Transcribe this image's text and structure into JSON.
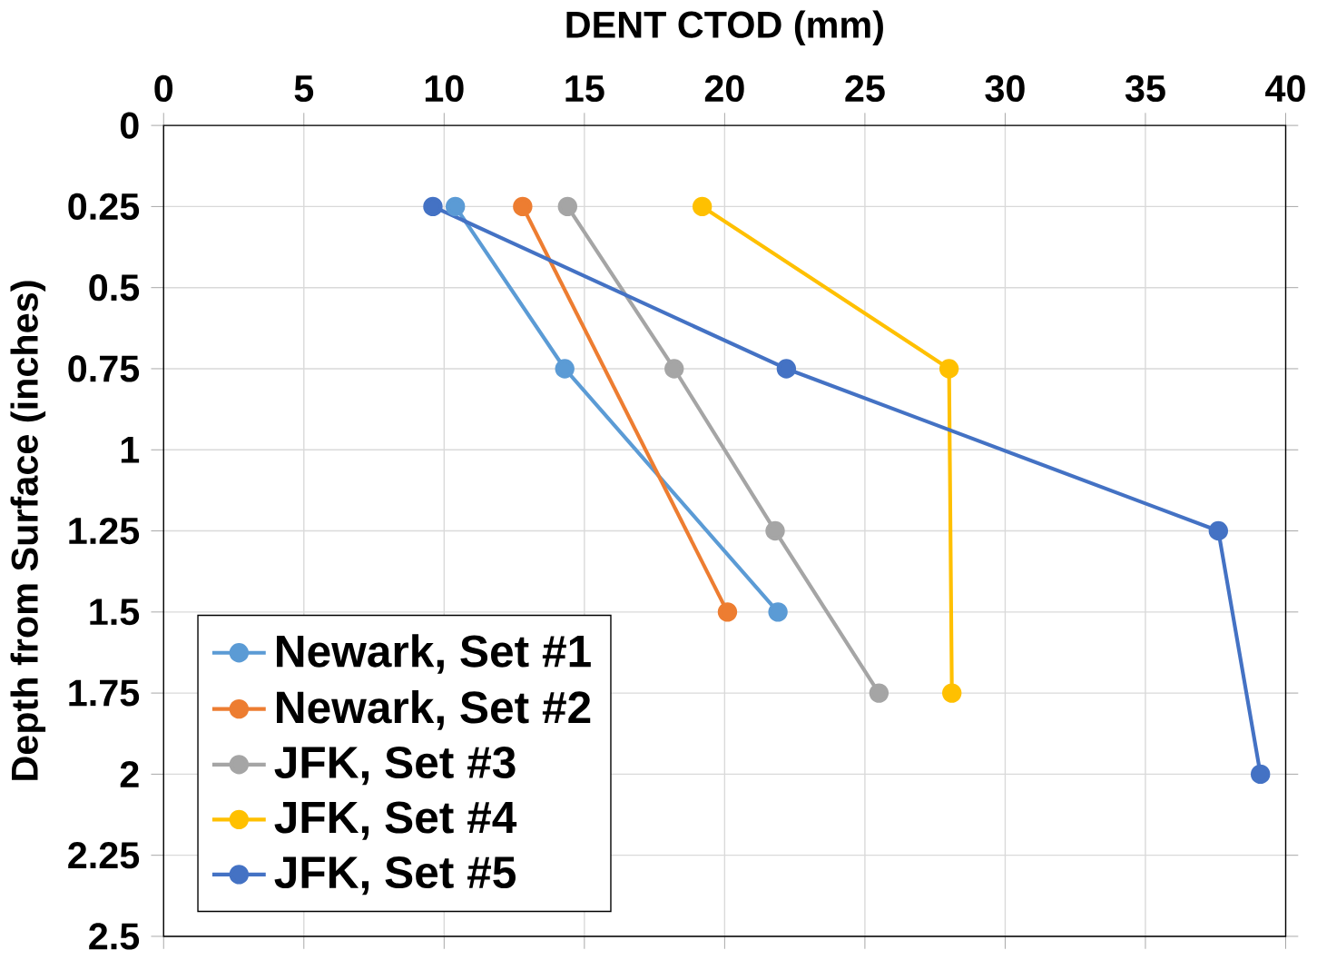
{
  "chart_data": {
    "type": "line",
    "xlabel": "DENT CTOD (mm)",
    "ylabel": "Depth from Surface (inches)",
    "xlim": [
      0,
      40
    ],
    "xticks": [
      0,
      5,
      10,
      15,
      20,
      25,
      30,
      35,
      40
    ],
    "ylim": [
      2.5,
      0
    ],
    "yticks": [
      0,
      0.25,
      0.5,
      0.75,
      1,
      1.25,
      1.5,
      1.75,
      2,
      2.25,
      2.5
    ],
    "grid": true,
    "legend": "bottom left",
    "marker": "circle",
    "line_style": "solid",
    "series": [
      {
        "name": "Newark, Set #1",
        "color": "#5b9bd5",
        "x": [
          10.4,
          14.3,
          21.9
        ],
        "values": [
          0.25,
          0.75,
          1.5
        ]
      },
      {
        "name": "Newark, Set #2",
        "color": "#ed7d31",
        "x": [
          12.8,
          20.1
        ],
        "values": [
          0.25,
          1.5
        ]
      },
      {
        "name": "JFK, Set #3",
        "color": "#a5a5a5",
        "x": [
          14.4,
          18.2,
          21.8,
          25.5
        ],
        "values": [
          0.25,
          0.75,
          1.25,
          1.75
        ]
      },
      {
        "name": "JFK, Set #4",
        "color": "#ffc000",
        "x": [
          19.2,
          28.0,
          28.1
        ],
        "values": [
          0.25,
          0.75,
          1.75
        ]
      },
      {
        "name": "JFK, Set #5",
        "color": "#4472c4",
        "x": [
          9.6,
          22.2,
          37.6,
          39.1
        ],
        "values": [
          0.25,
          0.75,
          1.25,
          2.0
        ]
      }
    ]
  }
}
